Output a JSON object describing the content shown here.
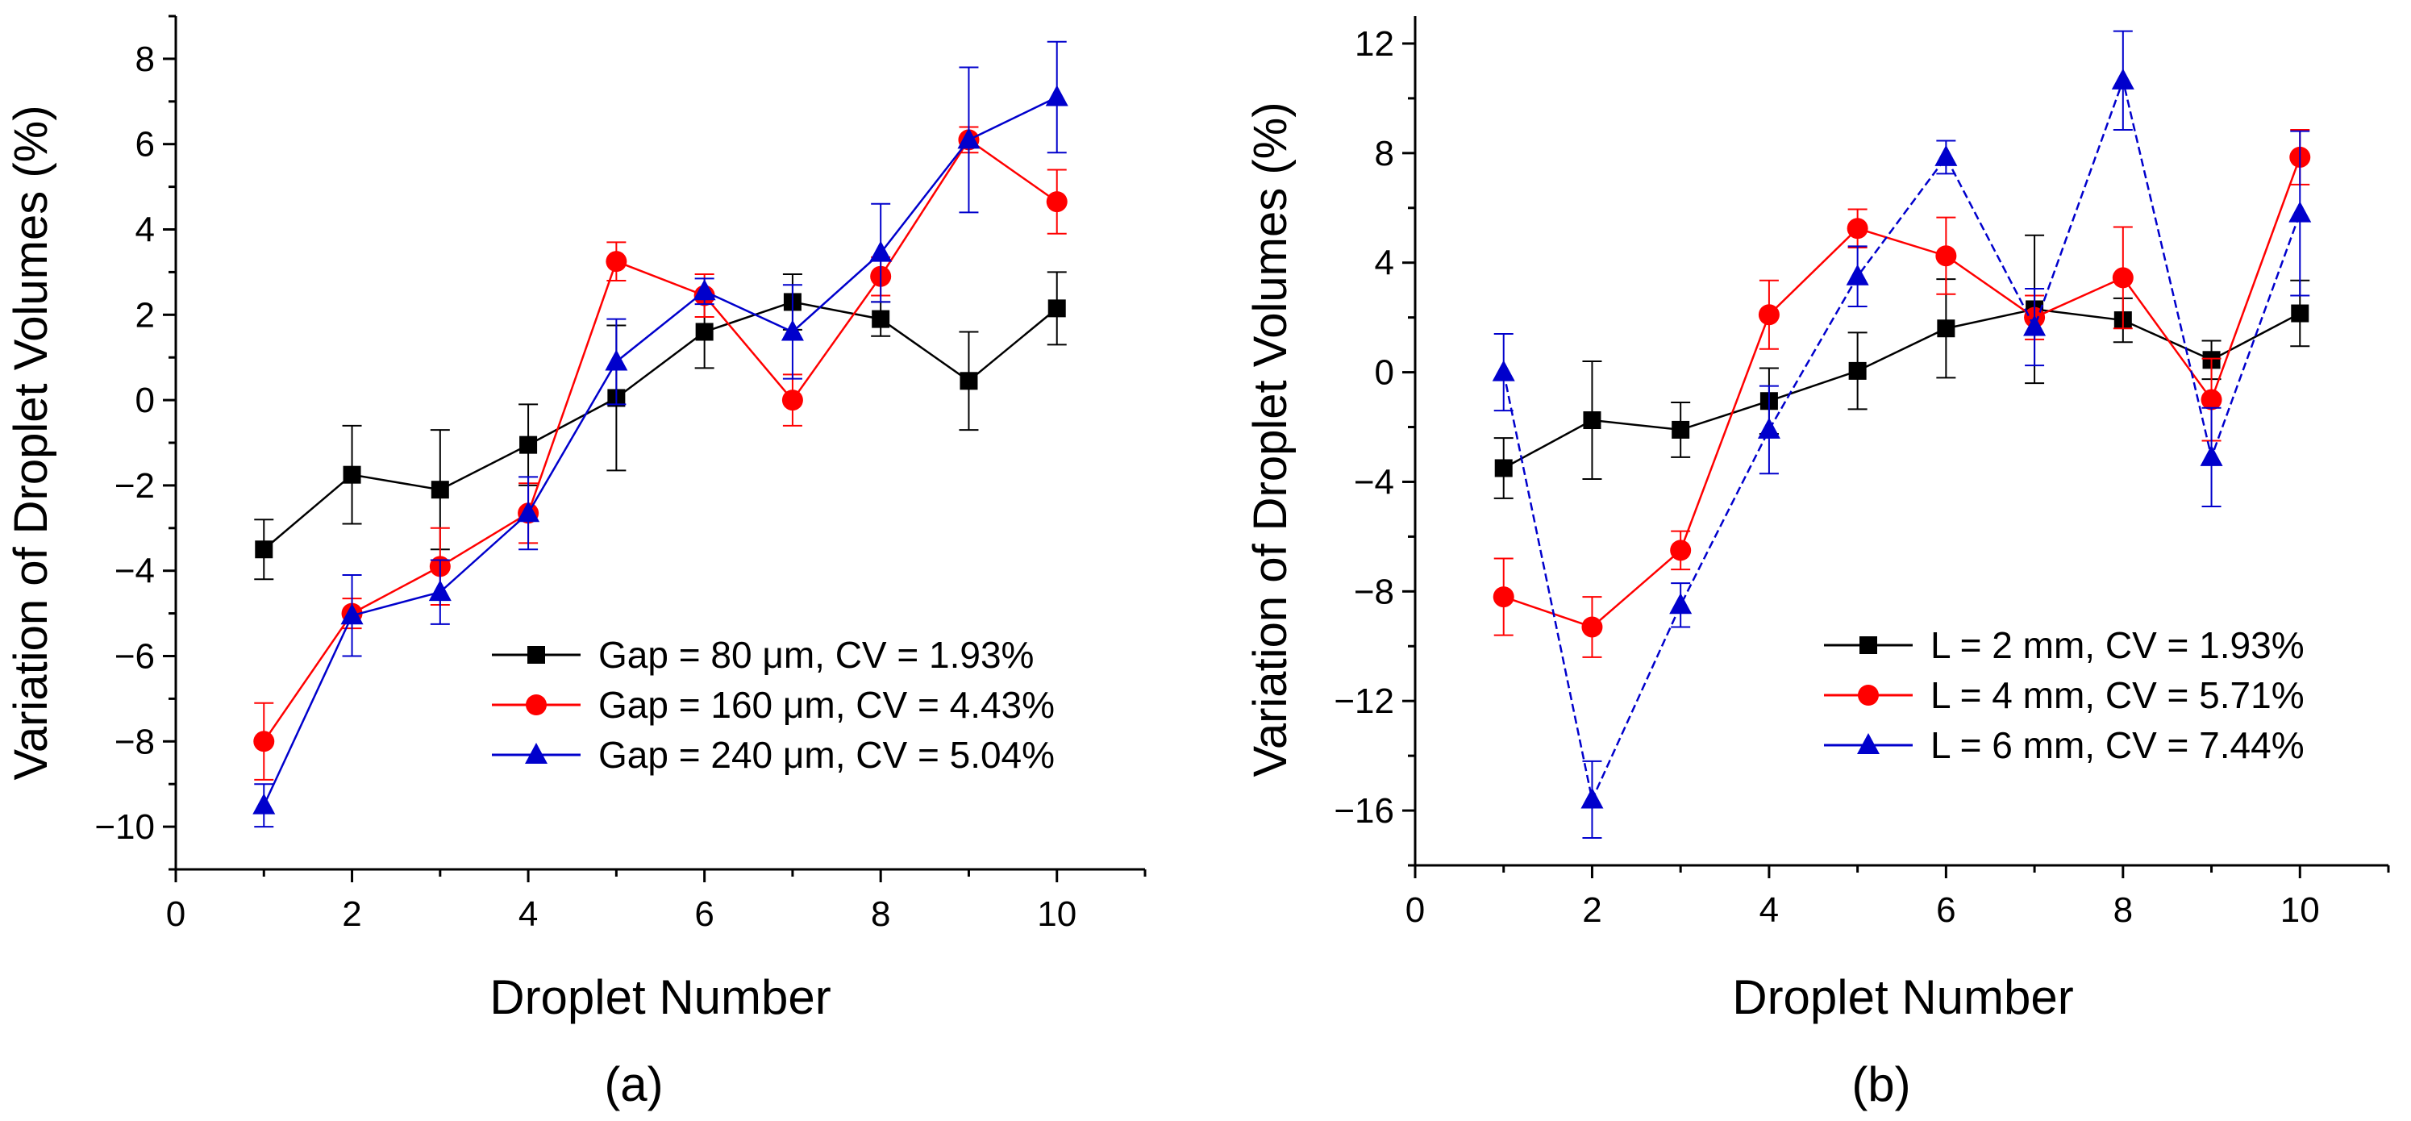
{
  "chart_data": [
    {
      "type": "line",
      "panel_label": "(a)",
      "xlabel": "Droplet Number",
      "ylabel": "Variation of Droplet Volumes (%)",
      "xlim": [
        0,
        11
      ],
      "ylim": [
        -11,
        9
      ],
      "xticks": [
        0,
        2,
        4,
        6,
        8,
        10
      ],
      "yticks": [
        -10,
        -8,
        -6,
        -4,
        -2,
        0,
        2,
        4,
        6,
        8
      ],
      "ytick_labels": [
        "−10",
        "−8",
        "−6",
        "−4",
        "−2",
        "0",
        "2",
        "4",
        "6",
        "8"
      ],
      "x": [
        1,
        2,
        3,
        4,
        5,
        6,
        7,
        8,
        9,
        10
      ],
      "legend_position": "bottom-right",
      "series": [
        {
          "name": "Gap = 80 μm, CV = 1.93%",
          "color": "#000000",
          "marker": "square",
          "values": [
            -3.5,
            -1.75,
            -2.1,
            -1.05,
            0.05,
            1.6,
            2.3,
            1.9,
            0.45,
            2.15
          ],
          "errors": [
            0.7,
            1.15,
            1.4,
            0.95,
            1.7,
            0.85,
            0.65,
            0.4,
            1.15,
            0.85
          ]
        },
        {
          "name": "Gap = 160 μm, CV = 4.43%",
          "color": "#ff0000",
          "marker": "circle",
          "values": [
            -8.0,
            -5.0,
            -3.9,
            -2.65,
            3.25,
            2.45,
            0.0,
            2.9,
            6.1,
            4.65
          ],
          "errors": [
            0.9,
            0.35,
            0.9,
            0.7,
            0.45,
            0.5,
            0.6,
            0.45,
            0.3,
            0.75
          ]
        },
        {
          "name": "Gap = 240 μm, CV = 5.04%",
          "color": "#0000cc",
          "marker": "triangle",
          "values": [
            -9.5,
            -5.05,
            -4.5,
            -2.65,
            0.9,
            2.55,
            1.6,
            3.45,
            6.1,
            7.1
          ],
          "errors": [
            0.5,
            0.95,
            0.75,
            0.85,
            1.0,
            0.3,
            1.1,
            1.15,
            1.7,
            1.3
          ]
        }
      ]
    },
    {
      "type": "line",
      "panel_label": "(b)",
      "xlabel": "Droplet Number",
      "ylabel": "Variation of Droplet Volumes (%)",
      "xlim": [
        0,
        11
      ],
      "ylim": [
        -18,
        13
      ],
      "xticks": [
        0,
        2,
        4,
        6,
        8,
        10
      ],
      "yticks": [
        -16,
        -12,
        -8,
        -4,
        0,
        4,
        8,
        12
      ],
      "ytick_labels": [
        "−16",
        "−12",
        "−8",
        "−4",
        "0",
        "4",
        "8",
        "12"
      ],
      "x": [
        1,
        2,
        3,
        4,
        5,
        6,
        7,
        8,
        9,
        10
      ],
      "legend_position": "bottom-right",
      "series": [
        {
          "name": "L = 2 mm, CV = 1.93%",
          "color": "#000000",
          "marker": "square",
          "values": [
            -3.5,
            -1.75,
            -2.1,
            -1.05,
            0.05,
            1.6,
            2.3,
            1.9,
            0.45,
            2.15
          ],
          "errors": [
            1.1,
            2.15,
            1.0,
            1.2,
            1.4,
            1.8,
            2.7,
            0.8,
            0.7,
            1.2
          ]
        },
        {
          "name": "L = 4 mm, CV = 5.71%",
          "color": "#ff0000",
          "marker": "circle",
          "values": [
            -8.2,
            -9.3,
            -6.5,
            2.1,
            5.25,
            4.25,
            2.0,
            3.45,
            -1.0,
            7.85
          ],
          "errors": [
            1.4,
            1.1,
            0.7,
            1.25,
            0.7,
            1.4,
            0.8,
            1.85,
            1.5,
            1.0
          ]
        },
        {
          "name": "L = 6 mm, CV = 7.44%",
          "color": "#0000cc",
          "marker": "triangle",
          "values": [
            0.0,
            -15.6,
            -8.5,
            -2.1,
            3.5,
            7.85,
            1.65,
            10.65,
            -3.1,
            5.8
          ],
          "errors": [
            1.4,
            1.4,
            0.8,
            1.6,
            1.1,
            0.6,
            1.4,
            1.8,
            1.8,
            3.0
          ]
        }
      ]
    }
  ]
}
